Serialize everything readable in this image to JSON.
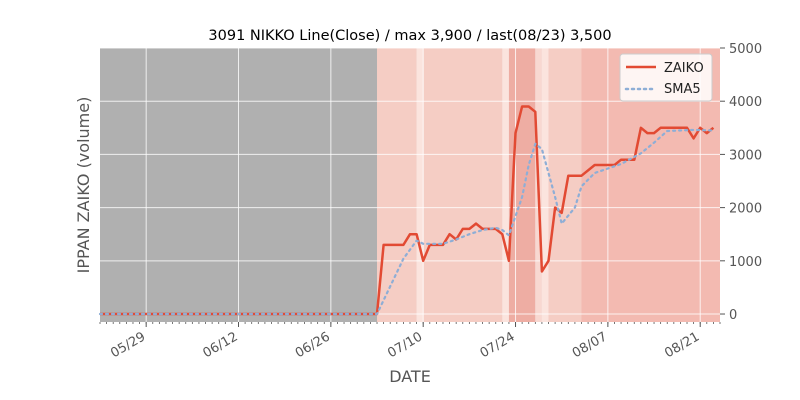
{
  "chart_data": {
    "type": "line",
    "title": "3091 NIKKO Line(Close) / max 3,900 / last(08/23) 3,500",
    "xlabel": "DATE",
    "ylabel": "IPPAN ZAIKO (volume)",
    "ylim": [
      -150,
      5000
    ],
    "y_ticks": [
      0,
      1000,
      2000,
      3000,
      4000,
      5000
    ],
    "y_tick_labels": [
      "0",
      "1000",
      "2000",
      "3000",
      "4000",
      "5000"
    ],
    "x_ticks": [
      {
        "date": "2023-05-29",
        "label": "05/29"
      },
      {
        "date": "2023-06-12",
        "label": "06/12"
      },
      {
        "date": "2023-06-26",
        "label": "06/26"
      },
      {
        "date": "2023-07-10",
        "label": "07/10"
      },
      {
        "date": "2023-07-24",
        "label": "07/24"
      },
      {
        "date": "2023-08-07",
        "label": "08/07"
      },
      {
        "date": "2023-08-21",
        "label": "08/21"
      }
    ],
    "x_range": [
      "2023-05-22",
      "2023-08-24"
    ],
    "grid": true,
    "legend_position": "top-right",
    "background_bands": [
      {
        "start": "2023-05-22",
        "end": "2023-07-03",
        "color": "#b0b0b0"
      },
      {
        "start": "2023-07-03",
        "end": "2023-07-09",
        "color": "#f5cdc4"
      },
      {
        "start": "2023-07-09",
        "end": "2023-07-10",
        "color": "#fbe4de"
      },
      {
        "start": "2023-07-10",
        "end": "2023-07-22",
        "color": "#f5cdc4"
      },
      {
        "start": "2023-07-22",
        "end": "2023-07-23",
        "color": "#fbe4de"
      },
      {
        "start": "2023-07-23",
        "end": "2023-07-27",
        "color": "#eeada3"
      },
      {
        "start": "2023-07-27",
        "end": "2023-07-28",
        "color": "#f8d8d1"
      },
      {
        "start": "2023-07-28",
        "end": "2023-07-29",
        "color": "#fbe4de"
      },
      {
        "start": "2023-07-29",
        "end": "2023-08-03",
        "color": "#f5cdc4"
      },
      {
        "start": "2023-08-03",
        "end": "2023-08-24",
        "color": "#f3bab1"
      }
    ],
    "series": [
      {
        "name": "ZAIKO",
        "color": "#e24a33",
        "style": "solid",
        "points": [
          [
            "2023-05-22",
            0
          ],
          [
            "2023-07-03",
            0
          ],
          [
            "2023-07-04",
            1300
          ],
          [
            "2023-07-07",
            1300
          ],
          [
            "2023-07-08",
            1500
          ],
          [
            "2023-07-09",
            1500
          ],
          [
            "2023-07-10",
            1000
          ],
          [
            "2023-07-11",
            1300
          ],
          [
            "2023-07-13",
            1300
          ],
          [
            "2023-07-14",
            1500
          ],
          [
            "2023-07-15",
            1400
          ],
          [
            "2023-07-16",
            1600
          ],
          [
            "2023-07-17",
            1600
          ],
          [
            "2023-07-18",
            1700
          ],
          [
            "2023-07-19",
            1600
          ],
          [
            "2023-07-21",
            1600
          ],
          [
            "2023-07-22",
            1500
          ],
          [
            "2023-07-23",
            1000
          ],
          [
            "2023-07-24",
            3400
          ],
          [
            "2023-07-25",
            3900
          ],
          [
            "2023-07-26",
            3900
          ],
          [
            "2023-07-27",
            3800
          ],
          [
            "2023-07-28",
            800
          ],
          [
            "2023-07-29",
            1000
          ],
          [
            "2023-07-30",
            2000
          ],
          [
            "2023-07-31",
            1900
          ],
          [
            "2023-08-01",
            2600
          ],
          [
            "2023-08-03",
            2600
          ],
          [
            "2023-08-05",
            2800
          ],
          [
            "2023-08-08",
            2800
          ],
          [
            "2023-08-09",
            2900
          ],
          [
            "2023-08-11",
            2900
          ],
          [
            "2023-08-12",
            3500
          ],
          [
            "2023-08-13",
            3400
          ],
          [
            "2023-08-14",
            3400
          ],
          [
            "2023-08-15",
            3500
          ],
          [
            "2023-08-19",
            3500
          ],
          [
            "2023-08-20",
            3300
          ],
          [
            "2023-08-21",
            3500
          ],
          [
            "2023-08-22",
            3400
          ],
          [
            "2023-08-23",
            3500
          ]
        ]
      },
      {
        "name": "SMA5",
        "color": "#8eaed6",
        "style": "dotted",
        "points": [
          [
            "2023-05-22",
            0
          ],
          [
            "2023-07-03",
            0
          ],
          [
            "2023-07-05",
            520
          ],
          [
            "2023-07-07",
            1040
          ],
          [
            "2023-07-09",
            1380
          ],
          [
            "2023-07-10",
            1320
          ],
          [
            "2023-07-13",
            1320
          ],
          [
            "2023-07-15",
            1400
          ],
          [
            "2023-07-17",
            1500
          ],
          [
            "2023-07-19",
            1580
          ],
          [
            "2023-07-21",
            1620
          ],
          [
            "2023-07-22",
            1580
          ],
          [
            "2023-07-23",
            1480
          ],
          [
            "2023-07-25",
            2200
          ],
          [
            "2023-07-26",
            2800
          ],
          [
            "2023-07-27",
            3200
          ],
          [
            "2023-07-28",
            3100
          ],
          [
            "2023-07-30",
            2200
          ],
          [
            "2023-07-31",
            1700
          ],
          [
            "2023-08-02",
            2000
          ],
          [
            "2023-08-03",
            2400
          ],
          [
            "2023-08-05",
            2650
          ],
          [
            "2023-08-09",
            2820
          ],
          [
            "2023-08-12",
            3020
          ],
          [
            "2023-08-14",
            3220
          ],
          [
            "2023-08-16",
            3440
          ],
          [
            "2023-08-20",
            3460
          ],
          [
            "2023-08-23",
            3450
          ]
        ]
      }
    ]
  }
}
